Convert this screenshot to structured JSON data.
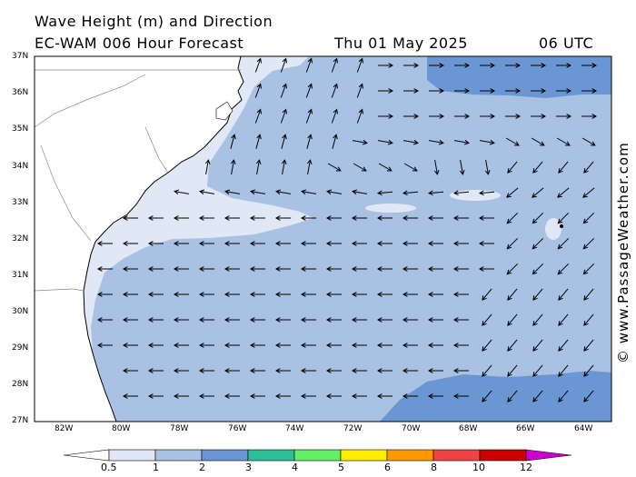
{
  "title": {
    "line1": "Wave Height (m) and Direction",
    "model": "EC-WAM 006 Hour Forecast",
    "date": "Thu 01 May 2025",
    "time": "06 UTC"
  },
  "credit": "© www.PassageWeather.com",
  "map": {
    "lat_labels": [
      "37N",
      "36N",
      "35N",
      "34N",
      "33N",
      "32N",
      "31N",
      "30N",
      "29N",
      "28N",
      "27N"
    ],
    "lon_labels": [
      "82W",
      "80W",
      "78W",
      "76W",
      "74W",
      "72W",
      "70W",
      "68W",
      "66W",
      "64W"
    ],
    "land_color": "#ffffff",
    "wave_colors": {
      "0.5-1": "#e0e8f5",
      "1-2": "#a9c1e3",
      "2-3": "#6b96d4"
    }
  },
  "colorbar": {
    "labels": [
      "0.5",
      "1",
      "2",
      "3",
      "4",
      "5",
      "6",
      "8",
      "10",
      "12"
    ],
    "colors": [
      "#e0e8f5",
      "#a9c1e3",
      "#6b96d4",
      "#2fbf98",
      "#66ee66",
      "#ffee00",
      "#ff9900",
      "#ee4444",
      "#cc0000",
      "#cc00cc"
    ]
  }
}
